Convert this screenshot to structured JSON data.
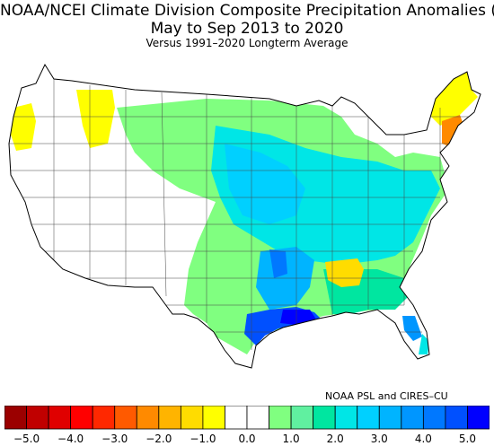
{
  "title": "NOAA/NCEI Climate Division Composite Precipitation Anomalies (in)",
  "subtitle": "May to Sep 2013 to 2020",
  "subtitle2": "Versus 1991–2020 Longterm Average",
  "credit": "NOAA PSL and CIRES–CU",
  "colorbar": {
    "min": -5.0,
    "max": 5.0,
    "step": 0.5,
    "ticks": [
      "−5.0",
      "−4.0",
      "−3.0",
      "−2.0",
      "−1.0",
      "0.0",
      "1.0",
      "2.0",
      "3.0",
      "4.0",
      "5.0"
    ],
    "colors": [
      "#9b0000",
      "#c00000",
      "#e00000",
      "#ff0000",
      "#ff2800",
      "#ff5a00",
      "#ff8a00",
      "#ffb400",
      "#ffdc00",
      "#ffff00",
      "#ffffff",
      "#ffffff",
      "#80ff80",
      "#60f0a0",
      "#00e6a0",
      "#00e6e6",
      "#00d0ff",
      "#00b4ff",
      "#0096ff",
      "#0078ff",
      "#0050ff",
      "#0000ff"
    ]
  },
  "regions": [
    {
      "name": "Pacific Northwest coast",
      "anomaly": -0.7,
      "color": "#ffff00"
    },
    {
      "name": "Eastern Washington / Idaho panhandle",
      "anomaly": -0.7,
      "color": "#ffff00"
    },
    {
      "name": "Northern Plains / Upper Midwest",
      "anomaly": 1.0,
      "color": "#80ff80"
    },
    {
      "name": "Central Plains / Midwest",
      "anomaly": 2.0,
      "color": "#00e6e6"
    },
    {
      "name": "Lower Mississippi Valley",
      "anomaly": 3.0,
      "color": "#00b4ff"
    },
    {
      "name": "Gulf Coast (Texas / Louisiana)",
      "anomaly": 4.5,
      "color": "#0000ff"
    },
    {
      "name": "Alabama / Georgia",
      "anomaly": -0.7,
      "color": "#ffdc00"
    },
    {
      "name": "Southeast / Florida",
      "anomaly": 1.5,
      "color": "#00e6a0"
    },
    {
      "name": "Mid-Atlantic / Appalachians",
      "anomaly": 2.0,
      "color": "#00e6e6"
    },
    {
      "name": "New England",
      "anomaly": -1.0,
      "color": "#ffff00"
    },
    {
      "name": "Southern New England",
      "anomaly": -2.0,
      "color": "#ff8a00"
    },
    {
      "name": "Southwest / Great Basin",
      "anomaly": 0.0,
      "color": "#ffffff"
    }
  ]
}
